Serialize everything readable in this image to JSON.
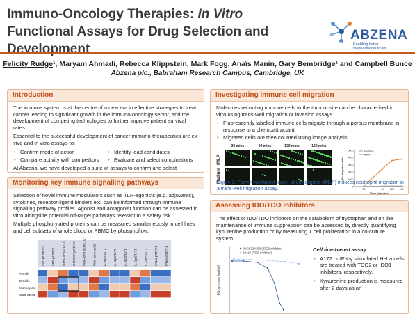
{
  "header": {
    "title_part1": "Immuno-Oncology Therapies: ",
    "title_italic": "In Vitro",
    "title_part2": " Functional Assays for Drug Selection and Development",
    "logo_text": "ABZENA",
    "logo_tagline": "Enabling better biopharmaceuticals",
    "presenting_author": "Felicity Rudge",
    "authors_rest": "¹, Maryam Ahmadi, Rebecca Klippstein, Mark Fogg, Anaïs Manin, Gary Bembridge¹ and Campbell Bunce",
    "affiliation": "Abzena plc., Babraham Research Campus, Cambridge, UK"
  },
  "intro": {
    "heading": "Introduction",
    "p1": "The immune system is at the centre of a new era in effective strategies to treat cancer leading to significant growth in the immuno-oncology sector, and the development of competing technologies to further improve patient survival rates.",
    "p2": "Essential to the successful development of cancer immuno-therapeutics are ex vivo and in vitro assays to:",
    "bullets_left": [
      "Confirm mode of action",
      "Compare activity with competitors"
    ],
    "bullets_right": [
      "Identify lead candidates",
      "Evaluate and select combinations"
    ],
    "p3": "At Abzena, we have developed a suite of assays to confirm and select optimally functioning, lead drug candidates for clinical development. Custom-made assays are also offered for very novel immuno-therapeutics."
  },
  "signal": {
    "heading": "Monitoring key immune signalling pathways",
    "p1": "Selection of novel immune modulators such as TLR-agonists (e.g. adjuvants), cytokines, receptor-ligand binders etc. can be informed through immune signalling pathway profiles.  Agonist and antagonist function can be assessed in vitro alongside potential off-target pathways relevant to a safety risk.",
    "p2": "Multiple phosphorylated proteins can be measured simultaneously in cell lines and cell subsets of whole blood or PBMC by phosphoflow.",
    "heatmap_cols": [
      "LPS pERK1/2",
      "LPS pSTAT3",
      "GM-CSF pSTAT5",
      "GM-CSF pSTAT3",
      "PMA-iono pERK1/2",
      "PMA-iono pp38",
      "IL-6 pSTAT3",
      "IL-4 pSTAT6",
      "IL-4 pSTAT5",
      "IL-2 pSTAT5",
      "IL-2 pSTAT3",
      "IFN-a pSTAT1",
      "IFN-y pSTAT1"
    ],
    "heatmap_rows": [
      "T Cells",
      "B Cells",
      "Monocytes",
      "CD3-CD33-"
    ]
  },
  "migration": {
    "heading": "Investigating immune cell migration",
    "p1": "Molecules recruiting immune cells to the tumour site can be characterised in vitro using trans-well migration or invasion assays.",
    "bullets": [
      "Fluorescently labelled immune cells migrate through a porous membrane in response to a chemoattractant.",
      "Migrated cells are then counted using image analysis."
    ],
    "time_labels": [
      "30 mins",
      "90 mins",
      "120 mins",
      "150 mins"
    ],
    "row_labels": [
      "fMLP",
      "Medium"
    ],
    "caption": "Figure 3: Formyl-methionyl-leucyl-phenylalanine (fMLP) induces neutrophil migration in a trans-well migration assay."
  },
  "ido": {
    "heading": "Assessing IDO/TDO inhibitors",
    "p1": "The effect of IDO/TDO inhibitors on the catabolism of tryptophan and on the maintenance of immune suppression can be assessed by directly quantifying kynurenine production or by measuring T cell proliferation in a co-culture system.",
    "cell_heading": "Cell line-based assay:",
    "cell_bullets": [
      "A172 or IFN-γ stimulated HeLa cells are treated with TDO2 or IDO1 inhibitors, respectively.",
      "Kynurenine production is measured after 2 days as an"
    ],
    "legend": [
      "INCB024360 (IDO1 inhibitor)",
      "LM10 (TDO inhibitor)"
    ],
    "ylabel": "Kynurenine (ng/ml)"
  },
  "chart_data": {
    "type": "line",
    "title": "",
    "xlabel": "Time (minutes)",
    "ylabel": "No. migrated cells",
    "x": [
      30,
      90,
      120,
      150
    ],
    "xlim": [
      0,
      160
    ],
    "ylim": [
      0,
      5000
    ],
    "yticks": [
      0,
      1000,
      2000,
      3000,
      4000,
      5000
    ],
    "series": [
      {
        "name": "Medium",
        "color": "#9aa0a6",
        "values": [
          40,
          60,
          70,
          80
        ]
      },
      {
        "name": "fMLP",
        "color": "#e07a2a",
        "values": [
          80,
          2500,
          3600,
          3800
        ]
      }
    ]
  },
  "colors": {
    "accent": "#c0501a",
    "panel_header_bg": "#fbe7d8",
    "brand_blue": "#2b5c9e"
  }
}
